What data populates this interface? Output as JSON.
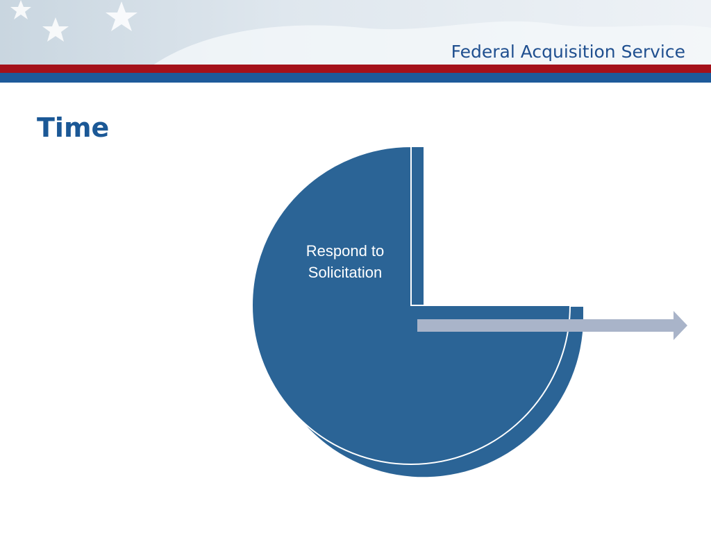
{
  "header": {
    "organization": "Federal Acquisition Service"
  },
  "title": "Time",
  "diagram": {
    "segments": [
      {
        "label": "Respond to Solicitation"
      }
    ]
  }
}
